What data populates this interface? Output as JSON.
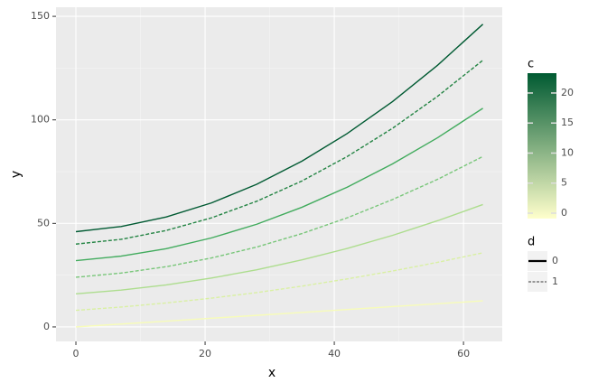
{
  "chart_data": {
    "type": "line",
    "x_label": "x",
    "y_label": "y",
    "x": [
      0,
      7,
      14,
      21,
      28,
      35,
      42,
      49,
      56,
      63
    ],
    "series": [
      {
        "c": 0,
        "d": 0,
        "color": "#f7fcb9",
        "values": [
          0,
          1.4,
          2.8,
          4.2,
          5.6,
          7,
          8.4,
          9.8,
          11.2,
          12.6
        ]
      },
      {
        "c": 4,
        "d": 1,
        "color": "#d9f0a3",
        "values": [
          8,
          9.6,
          11.6,
          13.9,
          16.6,
          19.7,
          23.2,
          27.0,
          31.2,
          35.8
        ]
      },
      {
        "c": 8,
        "d": 0,
        "color": "#addd8e",
        "values": [
          16,
          17.8,
          20.3,
          23.6,
          27.6,
          32.4,
          37.9,
          44.2,
          51.3,
          59.1
        ]
      },
      {
        "c": 12,
        "d": 1,
        "color": "#78c679",
        "values": [
          24,
          26.0,
          29.1,
          33.3,
          38.6,
          45.1,
          52.7,
          61.5,
          71.3,
          82.3
        ]
      },
      {
        "c": 16,
        "d": 0,
        "color": "#41ab5d",
        "values": [
          32,
          34.2,
          37.8,
          43.0,
          49.6,
          57.8,
          67.5,
          78.7,
          91.4,
          105.6
        ]
      },
      {
        "c": 20,
        "d": 1,
        "color": "#238443",
        "values": [
          40,
          42.3,
          46.6,
          52.7,
          60.7,
          70.5,
          82.3,
          95.9,
          111.4,
          128.8
        ]
      },
      {
        "c": 23,
        "d": 0,
        "color": "#005a32",
        "values": [
          46,
          48.5,
          53.1,
          59.9,
          68.9,
          80.1,
          93.4,
          108.8,
          126.4,
          146.2
        ]
      }
    ],
    "xlim": [
      -3.08,
      66.0
    ],
    "xticks": [
      0,
      20,
      40,
      60
    ],
    "ylim": [
      -7.0,
      154.4
    ],
    "yticks": [
      0,
      50,
      100,
      150
    ],
    "grid": true,
    "color_legend": {
      "title": "c",
      "lim": [
        -0.9,
        23.3
      ],
      "ticks": [
        0,
        5,
        10,
        15,
        20
      ],
      "low": "#ffffcc",
      "high": "#005a32"
    },
    "linetype_legend": {
      "title": "d",
      "labels": [
        "0",
        "1"
      ]
    }
  }
}
